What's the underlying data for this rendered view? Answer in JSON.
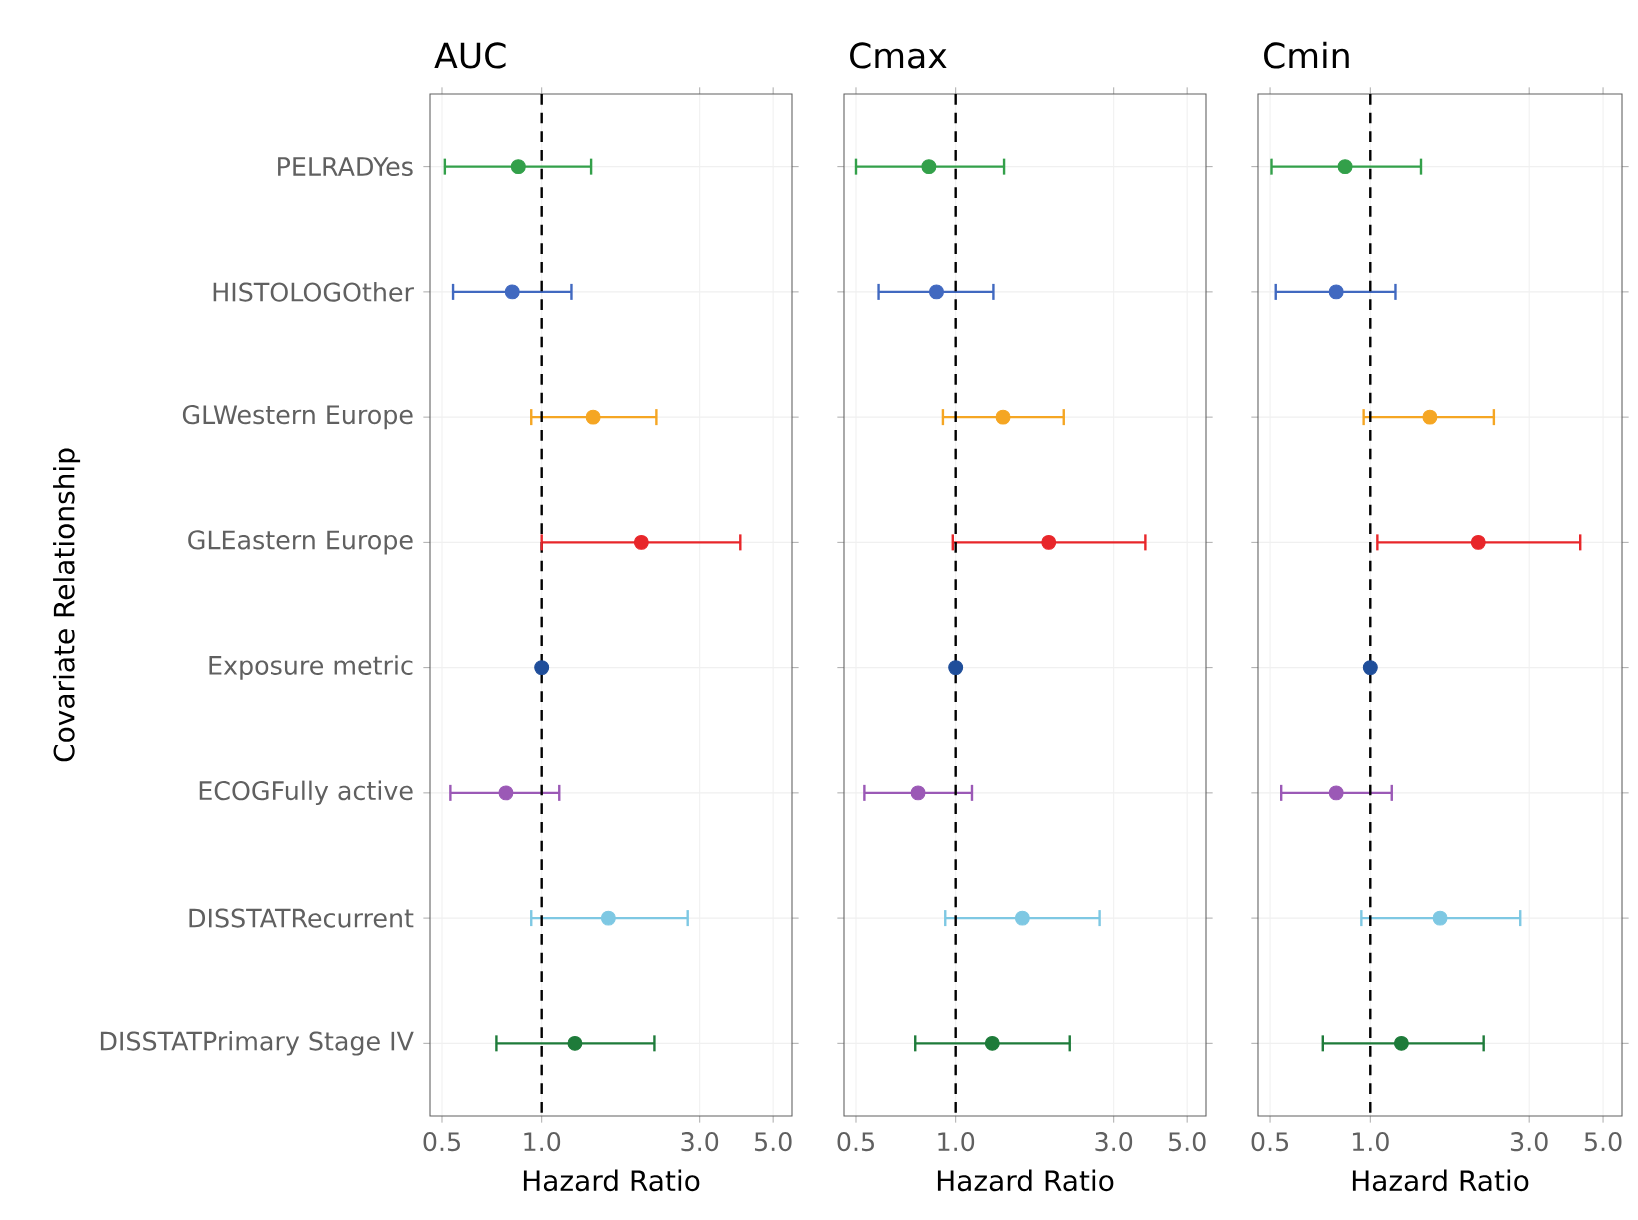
{
  "chart_data": [
    {
      "type": "scatter",
      "title": "AUC",
      "xlabel": "Hazard Ratio",
      "ylabel": "Covariate Relationship",
      "orientation": "horizontal",
      "categories": [
        "PELRADYes",
        "HISTOLOGOther",
        "GLWestern Europe",
        "GLEastern Europe",
        "Exposure metric",
        "ECOGFully active",
        "DISSTATRecurrent",
        "DISSTATPrimary Stage IV"
      ],
      "values": [
        0.85,
        0.815,
        1.43,
        2.0,
        1.0,
        0.78,
        1.59,
        1.26
      ],
      "errors": [
        [
          0.51,
          1.41
        ],
        [
          0.54,
          1.23
        ],
        [
          0.93,
          2.22
        ],
        [
          1.0,
          3.98
        ],
        null,
        [
          0.53,
          1.13
        ],
        [
          0.93,
          2.76
        ],
        [
          0.73,
          2.19
        ]
      ],
      "colors": [
        "#33a04a",
        "#4169c0",
        "#f5a623",
        "#e8262a",
        "#1f4e9a",
        "#9b59b6",
        "#7ec8e3",
        "#1e7b3a"
      ],
      "xlim": [
        0.46,
        5.7
      ],
      "xticks": [
        {
          "value": 0.5,
          "label": "0.5"
        },
        {
          "value": 1,
          "label": "1.0"
        },
        {
          "value": 3,
          "label": "3.0"
        },
        {
          "value": 5,
          "label": "5.0"
        }
      ],
      "log": "x",
      "grid": true,
      "marker": "circle",
      "ref_lines": [
        {
          "axis": "x",
          "value": 1,
          "line_style": "dashed",
          "color": "#000000"
        }
      ]
    },
    {
      "type": "scatter",
      "title": "Cmax",
      "xlabel": "Hazard Ratio",
      "orientation": "horizontal",
      "tick_labels": "x",
      "categories": [
        null,
        null,
        null,
        null,
        null,
        null,
        null,
        null
      ],
      "values": [
        0.83,
        0.875,
        1.39,
        1.91,
        1.0,
        0.77,
        1.59,
        1.29
      ],
      "errors": [
        [
          0.5,
          1.4
        ],
        [
          0.585,
          1.3
        ],
        [
          0.915,
          2.12
        ],
        [
          0.98,
          3.74
        ],
        null,
        [
          0.53,
          1.12
        ],
        [
          0.93,
          2.72
        ],
        [
          0.755,
          2.21
        ]
      ],
      "colors": [
        "#33a04a",
        "#4169c0",
        "#f5a623",
        "#e8262a",
        "#1f4e9a",
        "#9b59b6",
        "#7ec8e3",
        "#1e7b3a"
      ],
      "xlim": [
        0.46,
        5.7
      ],
      "xticks": [
        {
          "value": 0.5,
          "label": "0.5"
        },
        {
          "value": 1,
          "label": "1.0"
        },
        {
          "value": 3,
          "label": "3.0"
        },
        {
          "value": 5,
          "label": "5.0"
        }
      ],
      "log": "x",
      "grid": true,
      "marker": "circle",
      "ref_lines": [
        {
          "axis": "x",
          "value": 1,
          "line_style": "dashed",
          "color": "#000000"
        }
      ]
    },
    {
      "type": "scatter",
      "title": "Cmin",
      "xlabel": "Hazard Ratio",
      "orientation": "horizontal",
      "tick_labels": "x",
      "categories": [
        null,
        null,
        null,
        null,
        null,
        null,
        null,
        null
      ],
      "values": [
        0.84,
        0.79,
        1.51,
        2.11,
        1.0,
        0.79,
        1.62,
        1.24
      ],
      "errors": [
        [
          0.505,
          1.42
        ],
        [
          0.52,
          1.19
        ],
        [
          0.955,
          2.35
        ],
        [
          1.05,
          4.27
        ],
        null,
        [
          0.54,
          1.16
        ],
        [
          0.94,
          2.82
        ],
        [
          0.72,
          2.19
        ]
      ],
      "colors": [
        "#33a04a",
        "#4169c0",
        "#f5a623",
        "#e8262a",
        "#1f4e9a",
        "#9b59b6",
        "#7ec8e3",
        "#1e7b3a"
      ],
      "xlim": [
        0.46,
        5.7
      ],
      "xticks": [
        {
          "value": 0.5,
          "label": "0.5"
        },
        {
          "value": 1,
          "label": "1.0"
        },
        {
          "value": 3,
          "label": "3.0"
        },
        {
          "value": 5,
          "label": "5.0"
        }
      ],
      "log": "x",
      "grid": true,
      "marker": "circle",
      "ref_lines": [
        {
          "axis": "x",
          "value": 1,
          "line_style": "dashed",
          "color": "#000000"
        }
      ]
    }
  ]
}
